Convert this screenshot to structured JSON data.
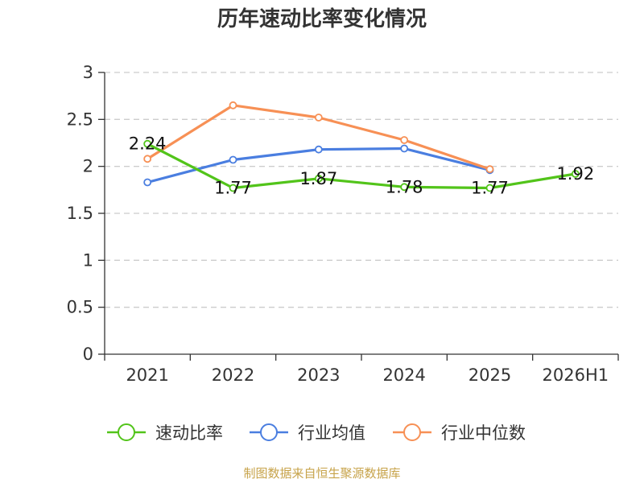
{
  "chart_data": {
    "type": "line",
    "title": "历年速动比率变化情况",
    "categories": [
      "2021",
      "2022",
      "2023",
      "2024",
      "2025",
      "2026H1"
    ],
    "ylim": [
      0,
      3
    ],
    "yticks": [
      "0",
      "0.5",
      "1",
      "1.5",
      "2",
      "2.5",
      "3"
    ],
    "grid": true,
    "legend_position": "bottom",
    "series": [
      {
        "name": "速动比率",
        "color": "#52c41a",
        "values": [
          2.24,
          1.77,
          1.87,
          1.78,
          1.77,
          1.92
        ],
        "labels": [
          "2.24",
          "1.77",
          "1.87",
          "1.78",
          "1.77",
          "1.92"
        ]
      },
      {
        "name": "行业均值",
        "color": "#4a7ee0",
        "values": [
          1.83,
          2.07,
          2.18,
          2.19,
          1.96,
          null
        ]
      },
      {
        "name": "行业中位数",
        "color": "#f79055",
        "values": [
          2.08,
          2.65,
          2.52,
          2.28,
          1.97,
          null
        ]
      }
    ]
  },
  "source_text": "制图数据来自恒生聚源数据库"
}
